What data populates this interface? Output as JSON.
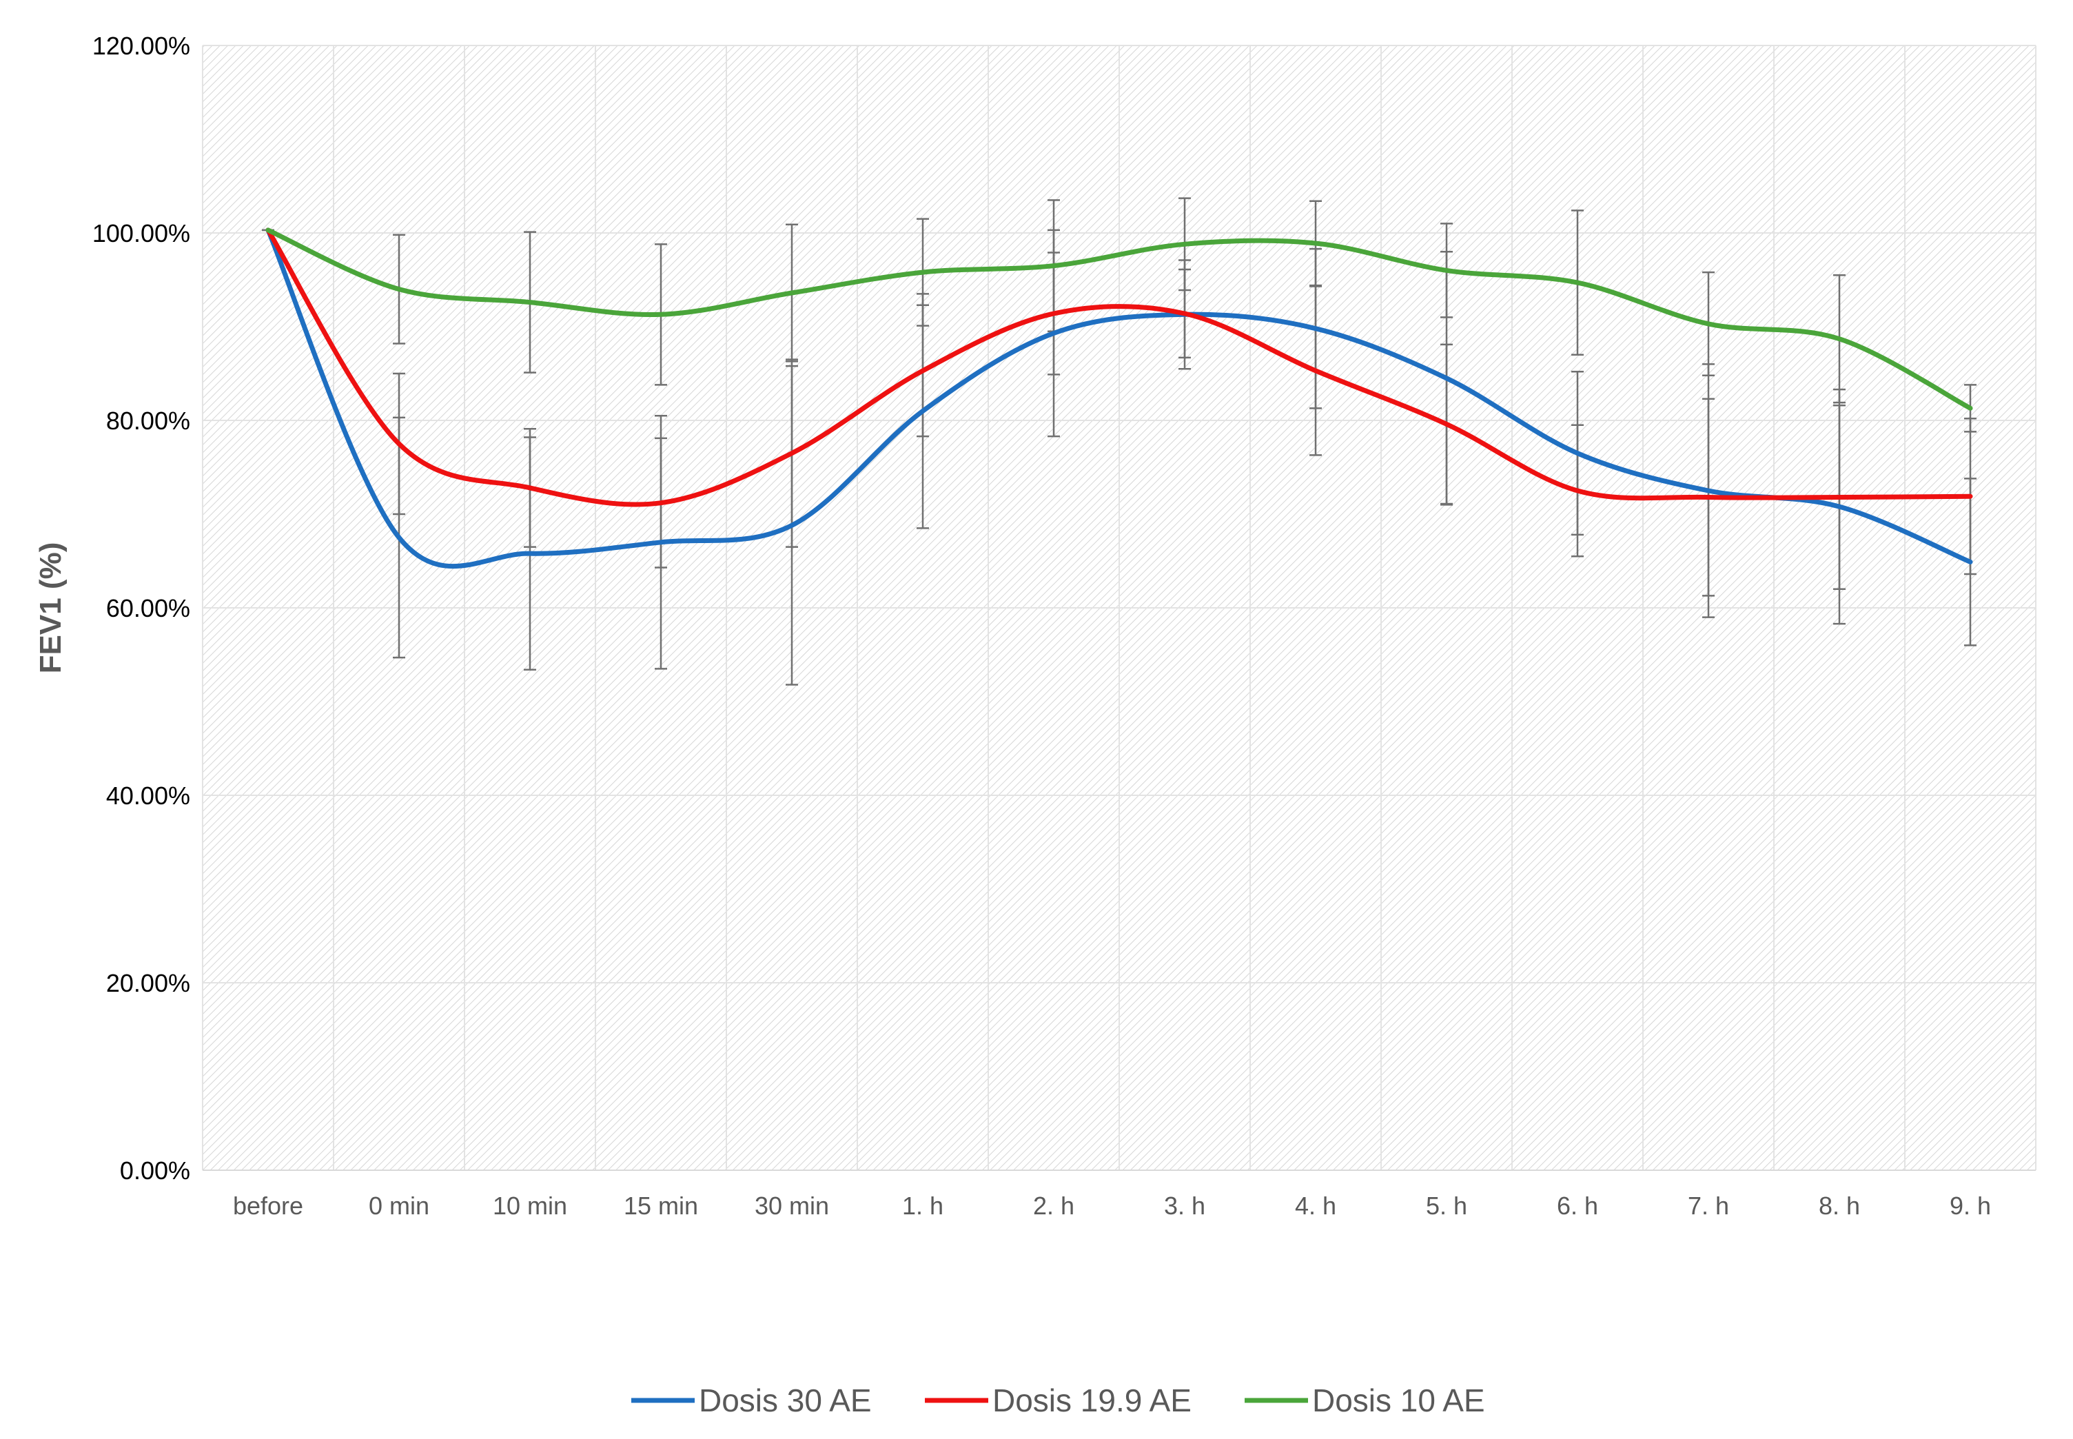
{
  "chart_data": {
    "type": "line",
    "title": "",
    "xlabel": "",
    "ylabel": "FEV1 (%)",
    "ylim": [
      0,
      120
    ],
    "yticks": [
      "0.00%",
      "20.00%",
      "40.00%",
      "60.00%",
      "80.00%",
      "100.00%",
      "120.00%"
    ],
    "ytick_values": [
      0,
      20,
      40,
      60,
      80,
      100,
      120
    ],
    "categories": [
      "before",
      "0 min",
      "10 min",
      "15 min",
      "30 min",
      "1. h",
      "2. h",
      "3. h",
      "4. h",
      "5. h",
      "6. h",
      "7. h",
      "8. h",
      "9. h"
    ],
    "grid": true,
    "smooth": true,
    "legend_position": "bottom",
    "series": [
      {
        "name": "Dosis 30 AE",
        "color": "#1f6fc1",
        "values": [
          100.3,
          67.5,
          65.8,
          67.0,
          68.8,
          81.0,
          89.3,
          91.3,
          89.8,
          84.5,
          76.5,
          72.5,
          70.8,
          64.9
        ],
        "err": [
          0,
          12.8,
          12.4,
          13.5,
          17.0,
          12.5,
          11.0,
          5.8,
          8.5,
          13.5,
          8.7,
          13.5,
          12.5,
          8.9
        ]
      },
      {
        "name": "Dosis 19.9 AE",
        "color": "#ee1111",
        "values": [
          100.3,
          77.5,
          72.8,
          71.2,
          76.5,
          85.3,
          91.4,
          91.4,
          85.3,
          79.6,
          72.5,
          71.8,
          71.8,
          71.9
        ],
        "err": [
          0,
          7.5,
          6.3,
          6.9,
          10.0,
          7.0,
          6.5,
          4.7,
          9.0,
          8.5,
          7.0,
          10.5,
          9.8,
          8.3
        ]
      },
      {
        "name": "Dosis 10 AE",
        "color": "#4aa53a",
        "values": [
          100.3,
          94.0,
          92.6,
          91.3,
          93.6,
          95.8,
          96.5,
          98.8,
          98.9,
          96.0,
          94.7,
          90.3,
          88.7,
          81.3
        ],
        "err": [
          0,
          5.8,
          7.5,
          7.5,
          7.3,
          5.7,
          7.0,
          4.9,
          4.5,
          5.0,
          7.7,
          5.5,
          6.8,
          2.5
        ]
      }
    ]
  }
}
